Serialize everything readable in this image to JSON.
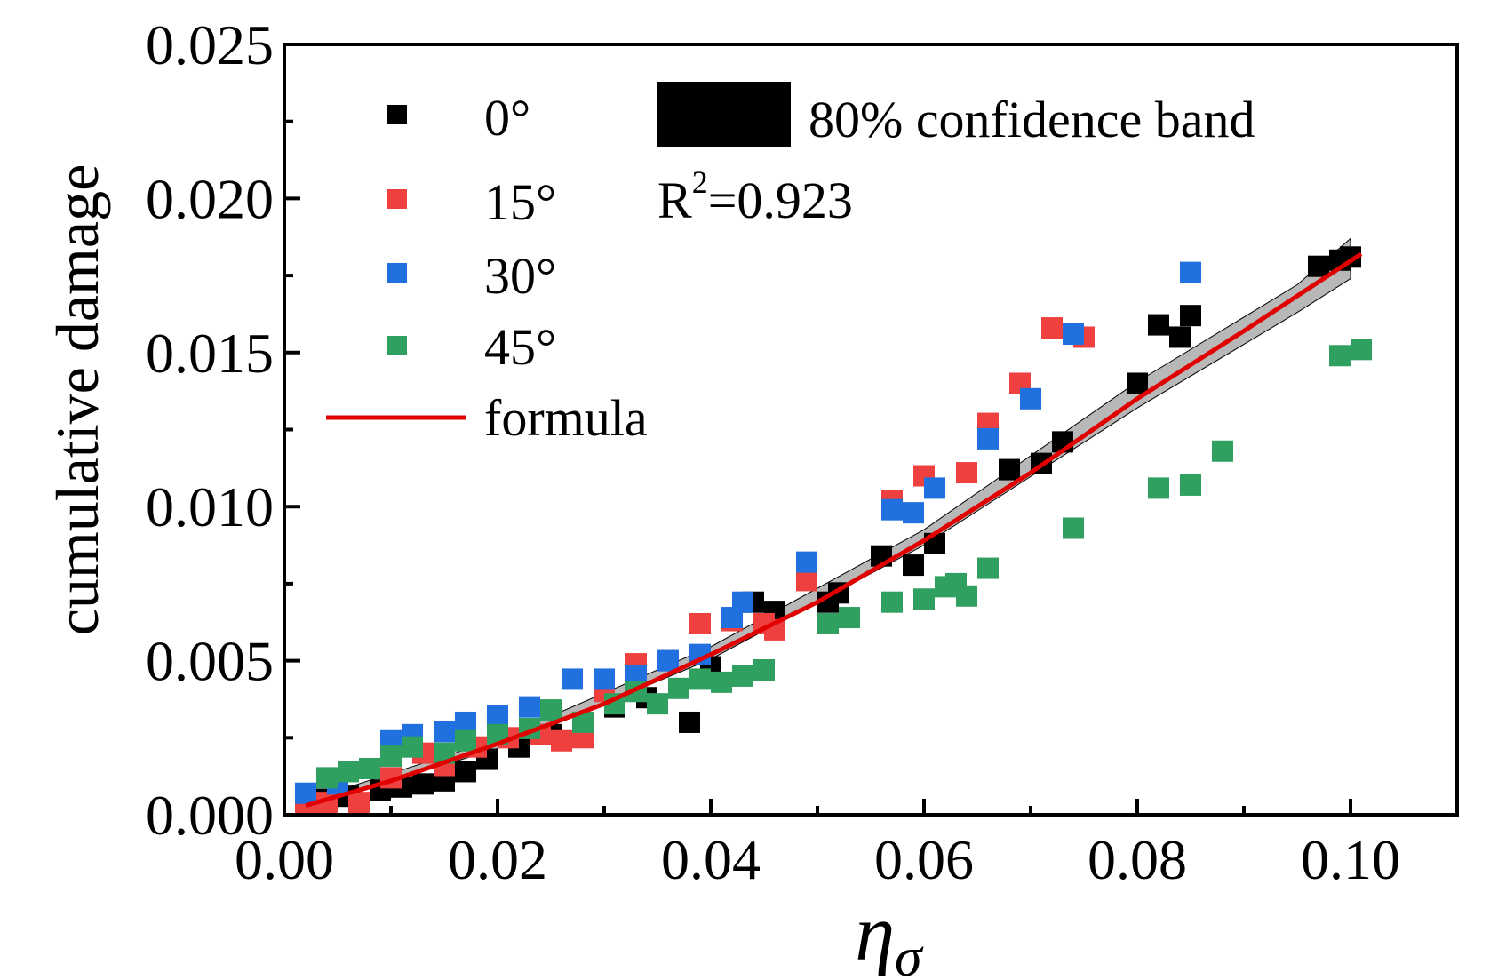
{
  "chart_data": {
    "type": "scatter",
    "xlabel": "η",
    "xlabel_subscript": "σ",
    "ylabel": "cumulative damage",
    "xlim": [
      0.0,
      0.11
    ],
    "ylim": [
      0.0,
      0.025
    ],
    "xticks": [
      "0.00",
      "0.02",
      "0.04",
      "0.06",
      "0.08",
      "0.10"
    ],
    "yticks": [
      "0.000",
      "0.005",
      "0.010",
      "0.015",
      "0.020",
      "0.025"
    ],
    "x_tick_values": [
      0.0,
      0.02,
      0.04,
      0.06,
      0.08,
      0.1
    ],
    "y_tick_values": [
      0.0,
      0.005,
      0.01,
      0.015,
      0.02,
      0.025
    ],
    "grid": false,
    "legend_position": "top-left",
    "series": [
      {
        "name": "0°",
        "color": "#000000",
        "points": [
          [
            0.002,
            0.0004
          ],
          [
            0.004,
            0.0005
          ],
          [
            0.006,
            0.0006
          ],
          [
            0.009,
            0.0008
          ],
          [
            0.011,
            0.0009
          ],
          [
            0.013,
            0.001
          ],
          [
            0.015,
            0.0011
          ],
          [
            0.017,
            0.0014
          ],
          [
            0.019,
            0.0018
          ],
          [
            0.022,
            0.0022
          ],
          [
            0.025,
            0.0026
          ],
          [
            0.028,
            0.003
          ],
          [
            0.031,
            0.0035
          ],
          [
            0.034,
            0.0038
          ],
          [
            0.038,
            0.003
          ],
          [
            0.04,
            0.0048
          ],
          [
            0.044,
            0.0069
          ],
          [
            0.046,
            0.0066
          ],
          [
            0.051,
            0.0069
          ],
          [
            0.052,
            0.0072
          ],
          [
            0.056,
            0.0084
          ],
          [
            0.059,
            0.0081
          ],
          [
            0.061,
            0.0088
          ],
          [
            0.068,
            0.0112
          ],
          [
            0.071,
            0.0114
          ],
          [
            0.073,
            0.0121
          ],
          [
            0.08,
            0.014
          ],
          [
            0.082,
            0.0159
          ],
          [
            0.084,
            0.0155
          ],
          [
            0.085,
            0.0162
          ],
          [
            0.097,
            0.0178
          ],
          [
            0.099,
            0.018
          ],
          [
            0.1,
            0.0181
          ]
        ]
      },
      {
        "name": "15°",
        "color": "#ef4040",
        "points": [
          [
            0.002,
            0.0003
          ],
          [
            0.004,
            0.0004
          ],
          [
            0.007,
            0.0004
          ],
          [
            0.01,
            0.0012
          ],
          [
            0.013,
            0.002
          ],
          [
            0.015,
            0.0016
          ],
          [
            0.018,
            0.0022
          ],
          [
            0.021,
            0.0025
          ],
          [
            0.024,
            0.0026
          ],
          [
            0.026,
            0.0024
          ],
          [
            0.028,
            0.0025
          ],
          [
            0.03,
            0.004
          ],
          [
            0.033,
            0.0049
          ],
          [
            0.036,
            0.005
          ],
          [
            0.039,
            0.0062
          ],
          [
            0.042,
            0.0063
          ],
          [
            0.045,
            0.0062
          ],
          [
            0.046,
            0.006
          ],
          [
            0.049,
            0.0076
          ],
          [
            0.057,
            0.0102
          ],
          [
            0.06,
            0.011
          ],
          [
            0.064,
            0.0111
          ],
          [
            0.066,
            0.0127
          ],
          [
            0.069,
            0.014
          ],
          [
            0.072,
            0.0158
          ],
          [
            0.075,
            0.0155
          ]
        ]
      },
      {
        "name": "30°",
        "color": "#2070e0",
        "points": [
          [
            0.002,
            0.0007
          ],
          [
            0.005,
            0.001
          ],
          [
            0.008,
            0.0015
          ],
          [
            0.01,
            0.0024
          ],
          [
            0.012,
            0.0026
          ],
          [
            0.015,
            0.0027
          ],
          [
            0.017,
            0.003
          ],
          [
            0.02,
            0.0032
          ],
          [
            0.023,
            0.0035
          ],
          [
            0.027,
            0.0044
          ],
          [
            0.03,
            0.0044
          ],
          [
            0.033,
            0.0045
          ],
          [
            0.036,
            0.005
          ],
          [
            0.039,
            0.0052
          ],
          [
            0.042,
            0.0064
          ],
          [
            0.043,
            0.0069
          ],
          [
            0.049,
            0.0082
          ],
          [
            0.057,
            0.0099
          ],
          [
            0.059,
            0.0098
          ],
          [
            0.061,
            0.0106
          ],
          [
            0.066,
            0.0122
          ],
          [
            0.07,
            0.0135
          ],
          [
            0.074,
            0.0156
          ],
          [
            0.085,
            0.0176
          ]
        ]
      },
      {
        "name": "45°",
        "color": "#30a060",
        "points": [
          [
            0.004,
            0.0012
          ],
          [
            0.006,
            0.0014
          ],
          [
            0.008,
            0.0015
          ],
          [
            0.01,
            0.0019
          ],
          [
            0.012,
            0.0022
          ],
          [
            0.015,
            0.002
          ],
          [
            0.017,
            0.0024
          ],
          [
            0.02,
            0.0026
          ],
          [
            0.023,
            0.0028
          ],
          [
            0.025,
            0.0034
          ],
          [
            0.028,
            0.003
          ],
          [
            0.031,
            0.0036
          ],
          [
            0.033,
            0.004
          ],
          [
            0.035,
            0.0036
          ],
          [
            0.037,
            0.0041
          ],
          [
            0.039,
            0.0044
          ],
          [
            0.041,
            0.0043
          ],
          [
            0.043,
            0.0045
          ],
          [
            0.045,
            0.0047
          ],
          [
            0.051,
            0.0062
          ],
          [
            0.053,
            0.0064
          ],
          [
            0.057,
            0.0069
          ],
          [
            0.06,
            0.007
          ],
          [
            0.062,
            0.0074
          ],
          [
            0.063,
            0.0075
          ],
          [
            0.064,
            0.0071
          ],
          [
            0.066,
            0.008
          ],
          [
            0.074,
            0.0093
          ],
          [
            0.082,
            0.0106
          ],
          [
            0.085,
            0.0107
          ],
          [
            0.088,
            0.0118
          ],
          [
            0.099,
            0.0149
          ],
          [
            0.101,
            0.0151
          ]
        ]
      }
    ],
    "fit": {
      "name": "formula",
      "color": "#e00000",
      "points": [
        [
          0.002,
          0.0003
        ],
        [
          0.01,
          0.0011
        ],
        [
          0.02,
          0.0023
        ],
        [
          0.03,
          0.0036
        ],
        [
          0.04,
          0.0052
        ],
        [
          0.05,
          0.0069
        ],
        [
          0.06,
          0.0089
        ],
        [
          0.07,
          0.0111
        ],
        [
          0.08,
          0.0135
        ],
        [
          0.09,
          0.0157
        ],
        [
          0.101,
          0.0182
        ]
      ]
    },
    "confidence_band": {
      "name": "80% confidence band",
      "color": "#000000",
      "points_upper": [
        [
          0.002,
          0.00045
        ],
        [
          0.02,
          0.00245
        ],
        [
          0.04,
          0.00545
        ],
        [
          0.06,
          0.00925
        ],
        [
          0.08,
          0.01405
        ],
        [
          0.095,
          0.0172
        ],
        [
          0.1,
          0.0187
        ]
      ],
      "points_lower": [
        [
          0.002,
          0.00025
        ],
        [
          0.02,
          0.00215
        ],
        [
          0.04,
          0.00505
        ],
        [
          0.06,
          0.00875
        ],
        [
          0.08,
          0.0132
        ],
        [
          0.095,
          0.0163
        ],
        [
          0.1,
          0.0174
        ]
      ]
    },
    "annotation": {
      "r2_base": "R",
      "r2_sup": "2",
      "r2_value": "=0.923"
    }
  }
}
